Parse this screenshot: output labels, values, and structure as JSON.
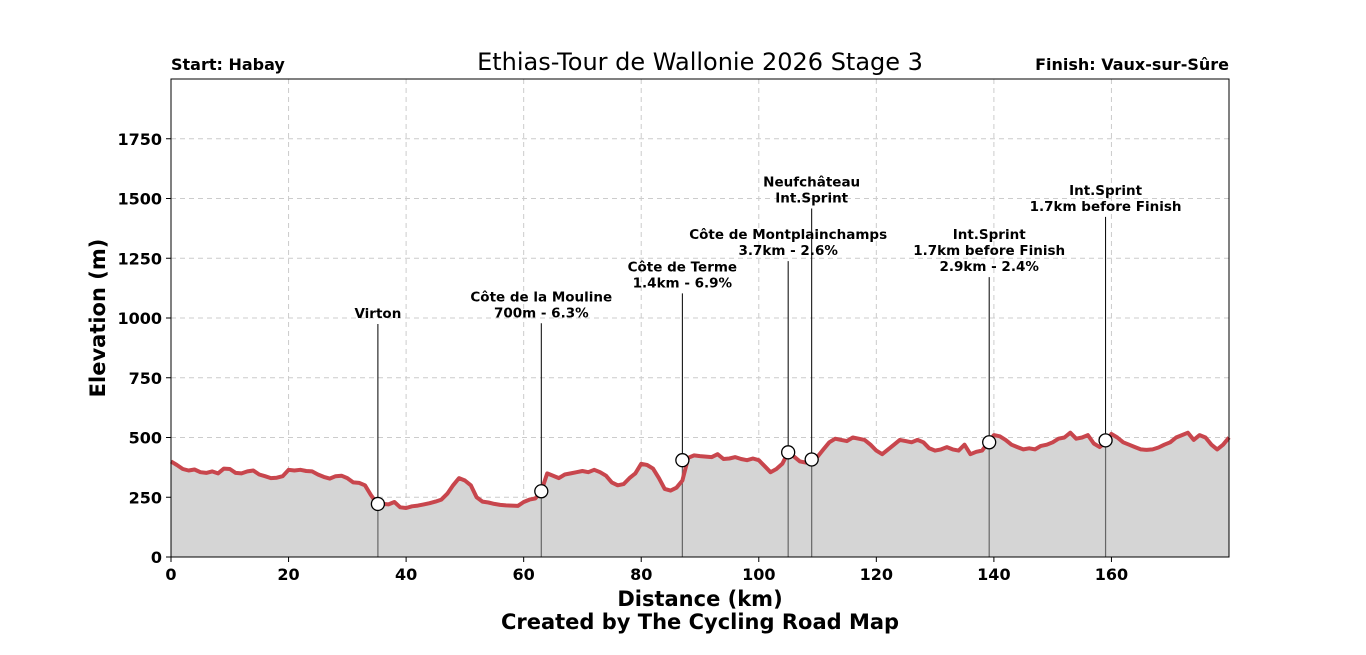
{
  "chart_data": {
    "type": "area",
    "title": "Ethias-Tour de Wallonie 2026 Stage 3",
    "start_label": "Start: Habay",
    "finish_label": "Finish: Vaux-sur-Sûre",
    "xlabel": "Distance (km)",
    "ylabel": "Elevation (m)",
    "credit": "Created by The Cycling Road Map",
    "xlim": [
      0,
      180
    ],
    "ylim": [
      0,
      2000
    ],
    "xticks": [
      0,
      20,
      40,
      60,
      80,
      100,
      120,
      140,
      160
    ],
    "yticks": [
      0,
      250,
      500,
      750,
      1000,
      1250,
      1500,
      1750
    ],
    "grid": true,
    "line_color": "#c8464d",
    "fill_color": "#d5d5d5",
    "profile": {
      "x": [
        0,
        1,
        2,
        3,
        4,
        5,
        6,
        7,
        8,
        9,
        10,
        11,
        12,
        13,
        14,
        15,
        16,
        17,
        18,
        19,
        20,
        21,
        22,
        23,
        24,
        25,
        26,
        27,
        28,
        29,
        30,
        31,
        32,
        33,
        34,
        35,
        36,
        37,
        38,
        39,
        40,
        41,
        42,
        43,
        44,
        45,
        46,
        47,
        48,
        49,
        50,
        51,
        52,
        53,
        54,
        55,
        56,
        57,
        58,
        59,
        60,
        61,
        62,
        63,
        64,
        65,
        66,
        67,
        68,
        69,
        70,
        71,
        72,
        73,
        74,
        75,
        76,
        77,
        78,
        79,
        80,
        81,
        82,
        83,
        84,
        85,
        86,
        87,
        88,
        89,
        90,
        91,
        92,
        93,
        94,
        95,
        96,
        97,
        98,
        99,
        100,
        101,
        102,
        103,
        104,
        105,
        106,
        107,
        108,
        109,
        110,
        111,
        112,
        113,
        114,
        115,
        116,
        117,
        118,
        119,
        120,
        121,
        122,
        123,
        124,
        125,
        126,
        127,
        128,
        129,
        130,
        131,
        132,
        133,
        134,
        135,
        136,
        137,
        138,
        139,
        140,
        141,
        142,
        143,
        144,
        145,
        146,
        147,
        148,
        149,
        150,
        151,
        152,
        153,
        154,
        155,
        156,
        157,
        158,
        159,
        160,
        161,
        162,
        163,
        164,
        165,
        166,
        167,
        168,
        169,
        170,
        171,
        172,
        173,
        174,
        175,
        176,
        177,
        178,
        179,
        180
      ],
      "y": [
        400,
        385,
        368,
        362,
        366,
        355,
        352,
        358,
        350,
        370,
        368,
        352,
        350,
        358,
        362,
        345,
        338,
        330,
        332,
        338,
        365,
        362,
        365,
        360,
        358,
        345,
        335,
        328,
        338,
        340,
        330,
        312,
        310,
        300,
        260,
        225,
        222,
        220,
        230,
        208,
        205,
        212,
        215,
        220,
        225,
        232,
        240,
        265,
        300,
        330,
        320,
        300,
        250,
        232,
        228,
        222,
        218,
        216,
        215,
        214,
        230,
        240,
        245,
        275,
        350,
        340,
        330,
        345,
        350,
        355,
        360,
        355,
        365,
        355,
        340,
        312,
        300,
        305,
        330,
        350,
        390,
        385,
        370,
        330,
        285,
        278,
        290,
        320,
        415,
        425,
        422,
        420,
        418,
        430,
        410,
        412,
        418,
        410,
        405,
        412,
        405,
        380,
        355,
        368,
        390,
        438,
        420,
        400,
        395,
        405,
        420,
        450,
        480,
        495,
        490,
        485,
        500,
        495,
        490,
        470,
        445,
        430,
        450,
        470,
        490,
        485,
        480,
        490,
        480,
        455,
        445,
        450,
        460,
        450,
        445,
        470,
        430,
        440,
        445,
        478,
        510,
        505,
        490,
        470,
        460,
        450,
        455,
        450,
        465,
        470,
        480,
        495,
        500,
        520,
        495,
        500,
        510,
        475,
        460,
        480,
        515,
        500,
        480,
        470,
        460,
        450,
        448,
        450,
        458,
        470,
        480,
        500,
        510,
        520,
        490,
        510,
        500,
        470,
        450,
        470,
        500
      ]
    },
    "annotations": [
      {
        "km": 35.2,
        "elev": 222,
        "label_y": 1000,
        "lines": [
          "Virton"
        ]
      },
      {
        "km": 63,
        "elev": 275,
        "label_y": 1070,
        "lines": [
          "Côte de la Mouline",
          "700m - 6.3%"
        ]
      },
      {
        "km": 87,
        "elev": 405,
        "label_y": 1195,
        "lines": [
          "Côte de Terme",
          "1.4km - 6.9%"
        ]
      },
      {
        "km": 105,
        "elev": 438,
        "label_y": 1330,
        "lines": [
          "Côte de Montplainchamps",
          "3.7km - 2.6%"
        ]
      },
      {
        "km": 109,
        "elev": 408,
        "label_y": 1550,
        "lines": [
          "Neufchâteau",
          "Int.Sprint"
        ]
      },
      {
        "km": 139.2,
        "elev": 480,
        "label_y": 1330,
        "lines": [
          "Int.Sprint",
          "1.7km before Finish",
          "2.9km - 2.4%"
        ]
      },
      {
        "km": 159,
        "elev": 488,
        "label_y": 1515,
        "lines": [
          "Int.Sprint",
          "1.7km before Finish"
        ]
      }
    ]
  }
}
